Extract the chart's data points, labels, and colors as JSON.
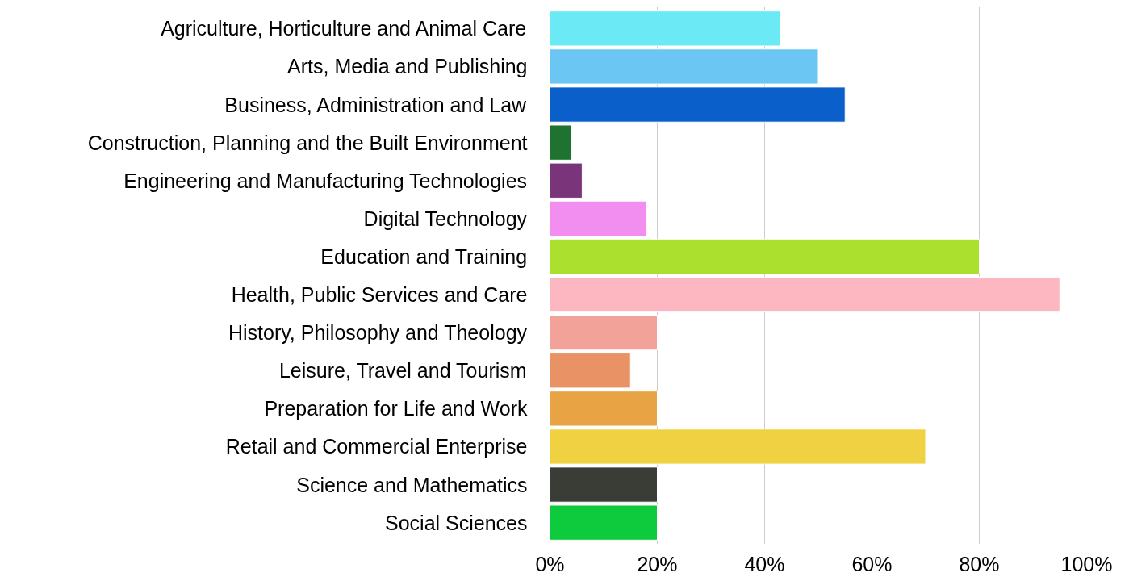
{
  "chart_data": {
    "type": "bar",
    "orientation": "horizontal",
    "categories": [
      "Agriculture, Horticulture and Animal Care",
      "Arts, Media and Publishing",
      "Business, Administration and Law",
      "Construction, Planning and the Built Environment",
      "Engineering and Manufacturing Technologies",
      "Digital Technology",
      "Education and Training",
      "Health, Public Services and Care",
      "History, Philosophy and Theology",
      "Leisure, Travel and Tourism",
      "Preparation for Life and Work",
      "Retail and Commercial Enterprise",
      "Science and Mathematics",
      "Social Sciences"
    ],
    "values": [
      43,
      50,
      55,
      4,
      6,
      18,
      80,
      95,
      20,
      15,
      20,
      70,
      20,
      20
    ],
    "colors": [
      "#6beaf5",
      "#6cc6f4",
      "#0b5fcb",
      "#1f7230",
      "#7a347a",
      "#f28ef0",
      "#abe02e",
      "#fdb7c1",
      "#f2a298",
      "#e89265",
      "#e8a444",
      "#f0d141",
      "#3a3d35",
      "#0ecb3d"
    ],
    "xlim": [
      0,
      100
    ],
    "xticks": [
      {
        "value": 0,
        "label": "0%"
      },
      {
        "value": 20,
        "label": "20%"
      },
      {
        "value": 40,
        "label": "40%"
      },
      {
        "value": 60,
        "label": "60%"
      },
      {
        "value": 80,
        "label": "80%"
      },
      {
        "value": 100,
        "label": "100%"
      }
    ],
    "grid": "x"
  }
}
